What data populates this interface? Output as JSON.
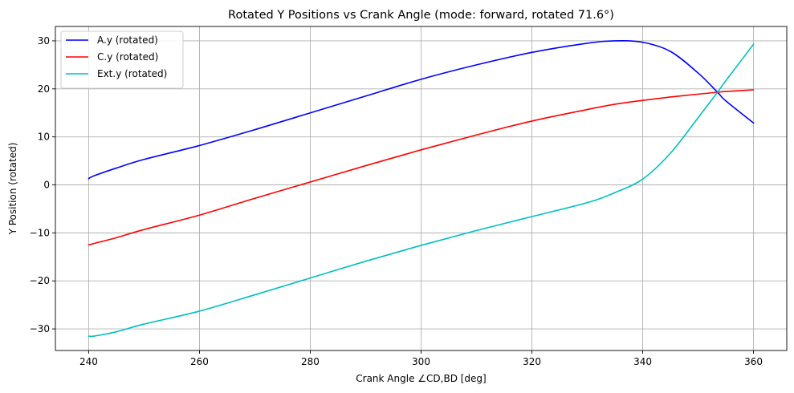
{
  "chart_data": {
    "type": "line",
    "title": "Rotated Y Positions vs Crank Angle (mode: forward, rotated 71.6°)",
    "xlabel": "Crank Angle ∠CD,BD [deg]",
    "ylabel": "Y Position (rotated)",
    "xlim": [
      234,
      366
    ],
    "ylim": [
      -34.5,
      33
    ],
    "xticks": [
      240,
      260,
      280,
      300,
      320,
      340,
      360
    ],
    "yticks": [
      -30,
      -20,
      -10,
      0,
      10,
      20,
      30
    ],
    "grid": true,
    "legend_position": "top-left",
    "x": [
      240,
      241,
      245,
      250,
      260,
      270,
      280,
      290,
      300,
      310,
      320,
      330,
      335,
      340,
      345,
      350,
      353.5,
      355,
      360
    ],
    "series": [
      {
        "name": "A.y (rotated)",
        "color": "#0000ff",
        "values": [
          1.3,
          1.9,
          3.5,
          5.3,
          8.2,
          11.5,
          15.0,
          18.5,
          22.0,
          25.0,
          27.6,
          29.5,
          30.0,
          29.7,
          27.8,
          23.3,
          19.3,
          17.5,
          12.9
        ]
      },
      {
        "name": "C.y (rotated)",
        "color": "#ff0000",
        "values": [
          -12.5,
          -12.2,
          -11.0,
          -9.3,
          -6.3,
          -2.8,
          0.6,
          4.0,
          7.3,
          10.4,
          13.3,
          15.7,
          16.8,
          17.6,
          18.3,
          18.9,
          19.3,
          19.45,
          19.8
        ]
      },
      {
        "name": "Ext.y (rotated)",
        "color": "#00bfbf",
        "values": [
          -31.5,
          -31.5,
          -30.6,
          -29.0,
          -26.3,
          -22.9,
          -19.4,
          -15.9,
          -12.6,
          -9.5,
          -6.6,
          -3.7,
          -1.6,
          1.2,
          6.6,
          14.0,
          19.3,
          21.7,
          29.3
        ]
      }
    ]
  }
}
